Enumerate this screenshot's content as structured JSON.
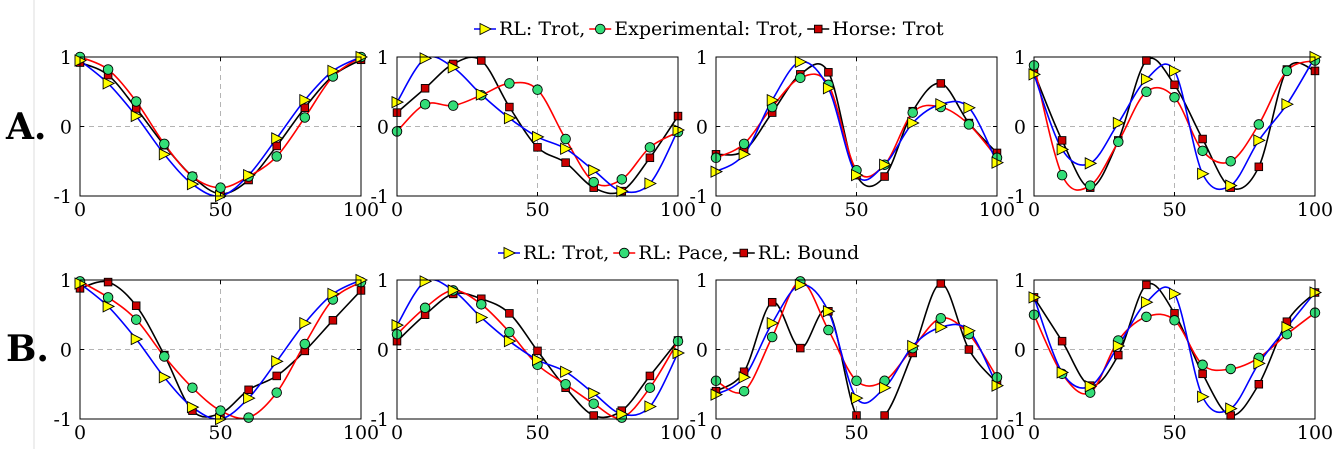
{
  "row_labels": [
    "A.",
    "B."
  ],
  "legends": [
    [
      "RL: Trot,",
      "Experimental: Trot,",
      "Horse: Trot"
    ],
    [
      "RL: Trot,",
      "RL: Pace,",
      "RL: Bound"
    ]
  ],
  "colors": {
    "blue": "#0000ff",
    "red": "#ff0000",
    "black": "#000000",
    "tri_fill": "#ffff00",
    "circ_fill": "#33dd77",
    "sq_fill": "#cc0000",
    "grid": "#b4b4b4"
  },
  "chart_data": [
    {
      "type": "line",
      "row": "A.",
      "col": 1,
      "xlim": [
        0,
        100
      ],
      "ylim": [
        -1,
        1
      ],
      "x_ticks": [
        "0",
        "50",
        "100"
      ],
      "y_ticks": [
        "1",
        "0",
        "-1"
      ],
      "series": [
        {
          "name": "RL: Trot",
          "color": "blue",
          "marker": "triangle",
          "x": [
            0,
            10,
            20,
            30,
            40,
            50,
            60,
            70,
            80,
            90,
            100
          ],
          "y": [
            0.95,
            0.62,
            0.15,
            -0.4,
            -0.83,
            -1.0,
            -0.7,
            -0.17,
            0.38,
            0.8,
            1.0
          ]
        },
        {
          "name": "Experimental: Trot",
          "color": "red",
          "marker": "circle",
          "x": [
            0,
            10,
            20,
            30,
            40,
            50,
            60,
            70,
            80,
            90,
            100
          ],
          "y": [
            1.0,
            0.82,
            0.36,
            -0.25,
            -0.72,
            -0.88,
            -0.72,
            -0.43,
            0.13,
            0.72,
            1.0
          ]
        },
        {
          "name": "Horse: Trot",
          "color": "black",
          "marker": "square",
          "x": [
            0,
            10,
            20,
            30,
            40,
            50,
            60,
            70,
            80,
            90,
            100
          ],
          "y": [
            0.92,
            0.74,
            0.26,
            -0.27,
            -0.72,
            -0.97,
            -0.77,
            -0.28,
            0.27,
            0.73,
            0.96
          ]
        }
      ]
    },
    {
      "type": "line",
      "row": "A.",
      "col": 2,
      "xlim": [
        0,
        100
      ],
      "ylim": [
        -1,
        1
      ],
      "x_ticks": [
        "0",
        "50",
        "100"
      ],
      "y_ticks": [
        "1",
        "0",
        "-1"
      ],
      "series": [
        {
          "name": "RL: Trot",
          "color": "blue",
          "marker": "triangle",
          "x": [
            0,
            10,
            20,
            30,
            40,
            50,
            60,
            70,
            80,
            90,
            100
          ],
          "y": [
            0.35,
            0.98,
            0.85,
            0.46,
            0.12,
            -0.15,
            -0.32,
            -0.63,
            -0.93,
            -0.82,
            -0.05
          ]
        },
        {
          "name": "Experimental: Trot",
          "color": "red",
          "marker": "circle",
          "x": [
            0,
            10,
            20,
            30,
            40,
            50,
            60,
            70,
            80,
            90,
            100
          ],
          "y": [
            -0.07,
            0.32,
            0.3,
            0.45,
            0.62,
            0.53,
            -0.18,
            -0.8,
            -0.76,
            -0.3,
            -0.08
          ]
        },
        {
          "name": "Horse: Trot",
          "color": "black",
          "marker": "square",
          "x": [
            0,
            10,
            20,
            30,
            40,
            50,
            60,
            70,
            80,
            90,
            100
          ],
          "y": [
            0.2,
            0.55,
            0.9,
            0.95,
            0.28,
            -0.3,
            -0.52,
            -0.88,
            -0.93,
            -0.45,
            0.15
          ]
        }
      ]
    },
    {
      "type": "line",
      "row": "A.",
      "col": 3,
      "xlim": [
        0,
        100
      ],
      "ylim": [
        -1,
        1
      ],
      "x_ticks": [
        "0",
        "50",
        "100"
      ],
      "y_ticks": [
        "1",
        "0",
        "-1"
      ],
      "series": [
        {
          "name": "RL: Trot",
          "color": "blue",
          "marker": "triangle",
          "x": [
            0,
            10,
            20,
            30,
            40,
            50,
            60,
            70,
            80,
            90,
            100
          ],
          "y": [
            -0.65,
            -0.4,
            0.38,
            0.93,
            0.55,
            -0.7,
            -0.55,
            0.05,
            0.32,
            0.27,
            -0.52
          ]
        },
        {
          "name": "Experimental: Trot",
          "color": "red",
          "marker": "circle",
          "x": [
            0,
            10,
            20,
            30,
            40,
            50,
            60,
            70,
            80,
            90,
            100
          ],
          "y": [
            -0.45,
            -0.25,
            0.28,
            0.7,
            0.6,
            -0.63,
            -0.55,
            0.2,
            0.28,
            0.03,
            -0.45
          ]
        },
        {
          "name": "Horse: Trot",
          "color": "black",
          "marker": "square",
          "x": [
            0,
            10,
            20,
            30,
            40,
            50,
            60,
            70,
            80,
            90,
            100
          ],
          "y": [
            -0.4,
            -0.35,
            0.2,
            0.75,
            0.78,
            -0.7,
            -0.72,
            0.22,
            0.62,
            0.05,
            -0.38
          ]
        }
      ]
    },
    {
      "type": "line",
      "row": "A.",
      "col": 4,
      "xlim": [
        0,
        100
      ],
      "ylim": [
        -1,
        1
      ],
      "x_ticks": [
        "0",
        "50",
        "100"
      ],
      "y_ticks": [
        "1",
        "0",
        "-1"
      ],
      "series": [
        {
          "name": "RL: Trot",
          "color": "blue",
          "marker": "triangle",
          "x": [
            0,
            10,
            20,
            30,
            40,
            50,
            60,
            70,
            80,
            90,
            100
          ],
          "y": [
            0.75,
            -0.33,
            -0.53,
            0.05,
            0.68,
            0.8,
            -0.68,
            -0.85,
            -0.2,
            0.32,
            1.0
          ]
        },
        {
          "name": "Experimental: Trot",
          "color": "red",
          "marker": "circle",
          "x": [
            0,
            10,
            20,
            30,
            40,
            50,
            60,
            70,
            80,
            90,
            100
          ],
          "y": [
            0.88,
            -0.7,
            -0.85,
            -0.22,
            0.5,
            0.42,
            -0.35,
            -0.5,
            0.03,
            0.8,
            0.95
          ]
        },
        {
          "name": "Horse: Trot",
          "color": "black",
          "marker": "square",
          "x": [
            0,
            10,
            20,
            30,
            40,
            50,
            60,
            70,
            80,
            90,
            100
          ],
          "y": [
            0.78,
            -0.2,
            -0.88,
            -0.2,
            0.95,
            0.6,
            -0.18,
            -0.88,
            -0.58,
            0.82,
            0.8
          ]
        }
      ]
    },
    {
      "type": "line",
      "row": "B.",
      "col": 1,
      "xlim": [
        0,
        100
      ],
      "ylim": [
        -1,
        1
      ],
      "x_ticks": [
        "0",
        "50",
        "100"
      ],
      "y_ticks": [
        "1",
        "0",
        "-1"
      ],
      "series": [
        {
          "name": "RL: Trot",
          "color": "blue",
          "marker": "triangle",
          "x": [
            0,
            10,
            20,
            30,
            40,
            50,
            60,
            70,
            80,
            90,
            100
          ],
          "y": [
            0.95,
            0.62,
            0.15,
            -0.4,
            -0.83,
            -1.0,
            -0.7,
            -0.17,
            0.38,
            0.8,
            1.0
          ]
        },
        {
          "name": "RL: Pace",
          "color": "red",
          "marker": "circle",
          "x": [
            0,
            10,
            20,
            30,
            40,
            50,
            60,
            70,
            80,
            90,
            100
          ],
          "y": [
            0.98,
            0.75,
            0.43,
            -0.1,
            -0.55,
            -0.88,
            -0.98,
            -0.62,
            0.08,
            0.72,
            0.97
          ]
        },
        {
          "name": "RL: Bound",
          "color": "black",
          "marker": "square",
          "x": [
            0,
            10,
            20,
            30,
            40,
            50,
            60,
            70,
            80,
            90,
            100
          ],
          "y": [
            0.88,
            0.97,
            0.63,
            -0.08,
            -0.88,
            -0.92,
            -0.58,
            -0.38,
            -0.02,
            0.42,
            0.85
          ]
        }
      ]
    },
    {
      "type": "line",
      "row": "B.",
      "col": 2,
      "xlim": [
        0,
        100
      ],
      "ylim": [
        -1,
        1
      ],
      "x_ticks": [
        "0",
        "50",
        "100"
      ],
      "y_ticks": [
        "1",
        "0",
        "-1"
      ],
      "series": [
        {
          "name": "RL: Trot",
          "color": "blue",
          "marker": "triangle",
          "x": [
            0,
            10,
            20,
            30,
            40,
            50,
            60,
            70,
            80,
            90,
            100
          ],
          "y": [
            0.35,
            0.98,
            0.85,
            0.46,
            0.12,
            -0.15,
            -0.32,
            -0.63,
            -0.93,
            -0.82,
            -0.05
          ]
        },
        {
          "name": "RL: Pace",
          "color": "red",
          "marker": "circle",
          "x": [
            0,
            10,
            20,
            30,
            40,
            50,
            60,
            70,
            80,
            90,
            100
          ],
          "y": [
            0.22,
            0.6,
            0.85,
            0.65,
            0.25,
            -0.22,
            -0.5,
            -0.78,
            -0.98,
            -0.55,
            0.12
          ]
        },
        {
          "name": "RL: Bound",
          "color": "black",
          "marker": "square",
          "x": [
            0,
            10,
            20,
            30,
            40,
            50,
            60,
            70,
            80,
            90,
            100
          ],
          "y": [
            0.12,
            0.5,
            0.8,
            0.73,
            0.52,
            -0.02,
            -0.55,
            -0.95,
            -0.88,
            -0.38,
            0.13
          ]
        }
      ]
    },
    {
      "type": "line",
      "row": "B.",
      "col": 3,
      "xlim": [
        0,
        100
      ],
      "ylim": [
        -1,
        1
      ],
      "x_ticks": [
        "0",
        "50",
        "100"
      ],
      "y_ticks": [
        "1",
        "0",
        "-1"
      ],
      "series": [
        {
          "name": "RL: Trot",
          "color": "blue",
          "marker": "triangle",
          "x": [
            0,
            10,
            20,
            30,
            40,
            50,
            60,
            70,
            80,
            90,
            100
          ],
          "y": [
            -0.65,
            -0.4,
            0.38,
            0.93,
            0.55,
            -0.7,
            -0.55,
            0.05,
            0.32,
            0.27,
            -0.52
          ]
        },
        {
          "name": "RL: Pace",
          "color": "red",
          "marker": "circle",
          "x": [
            0,
            10,
            20,
            30,
            40,
            50,
            60,
            70,
            80,
            90,
            100
          ],
          "y": [
            -0.45,
            -0.6,
            0.18,
            0.98,
            0.28,
            -0.45,
            -0.45,
            0.02,
            0.45,
            0.22,
            -0.4
          ]
        },
        {
          "name": "RL: Bound",
          "color": "black",
          "marker": "square",
          "x": [
            0,
            10,
            20,
            30,
            40,
            50,
            60,
            70,
            80,
            90,
            100
          ],
          "y": [
            -0.6,
            -0.32,
            0.68,
            0.02,
            0.55,
            -0.95,
            -0.95,
            -0.05,
            0.95,
            0.0,
            -0.48
          ]
        }
      ]
    },
    {
      "type": "line",
      "row": "B.",
      "col": 4,
      "xlim": [
        0,
        100
      ],
      "ylim": [
        -1,
        1
      ],
      "x_ticks": [
        "0",
        "50",
        "100"
      ],
      "y_ticks": [
        "1",
        "0",
        "-1"
      ],
      "series": [
        {
          "name": "RL: Trot",
          "color": "blue",
          "marker": "triangle",
          "x": [
            0,
            10,
            20,
            30,
            40,
            50,
            60,
            70,
            80,
            90,
            100
          ],
          "y": [
            0.75,
            -0.33,
            -0.53,
            0.05,
            0.68,
            0.8,
            -0.68,
            -0.85,
            -0.2,
            0.32,
            0.82
          ]
        },
        {
          "name": "RL: Pace",
          "color": "red",
          "marker": "circle",
          "x": [
            0,
            10,
            20,
            30,
            40,
            50,
            60,
            70,
            80,
            90,
            100
          ],
          "y": [
            0.5,
            -0.35,
            -0.62,
            0.13,
            0.47,
            0.42,
            -0.22,
            -0.28,
            -0.12,
            0.22,
            0.53
          ]
        },
        {
          "name": "RL: Bound",
          "color": "black",
          "marker": "square",
          "x": [
            0,
            10,
            20,
            30,
            40,
            50,
            60,
            70,
            80,
            90,
            100
          ],
          "y": [
            0.75,
            0.12,
            -0.52,
            -0.08,
            0.93,
            0.52,
            -0.35,
            -0.95,
            -0.5,
            0.4,
            0.82
          ]
        }
      ]
    }
  ]
}
